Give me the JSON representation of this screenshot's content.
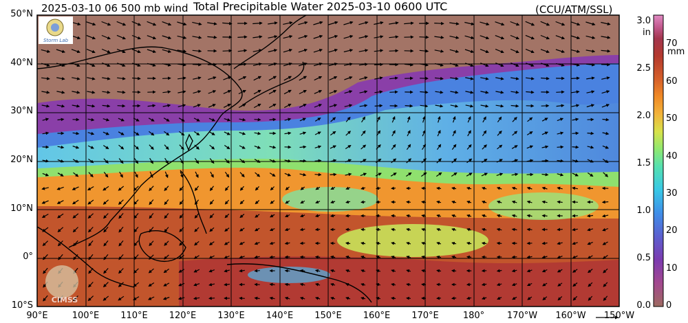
{
  "header": {
    "left": "2025-03-10 06 500 mb wind",
    "center": "Total Precipitable Water  2025-03-10 0600 UTC",
    "right": "(CCU/ATM/SSL)"
  },
  "map": {
    "projection": "equirectangular",
    "lat_range": [
      -10,
      50
    ],
    "lon_range": [
      90,
      210
    ],
    "lat_labels": [
      {
        "lat": 50,
        "text": "50°N"
      },
      {
        "lat": 40,
        "text": "40°N"
      },
      {
        "lat": 30,
        "text": "30°N"
      },
      {
        "lat": 20,
        "text": "20°N"
      },
      {
        "lat": 10,
        "text": "10°N"
      },
      {
        "lat": 0,
        "text": "0°"
      },
      {
        "lat": -10,
        "text": "10°S"
      }
    ],
    "lon_labels": [
      {
        "lon": 90,
        "text": "90°E"
      },
      {
        "lon": 100,
        "text": "100°E"
      },
      {
        "lon": 110,
        "text": "110°E"
      },
      {
        "lon": 120,
        "text": "120°E"
      },
      {
        "lon": 130,
        "text": "130°E"
      },
      {
        "lon": 140,
        "text": "140°E"
      },
      {
        "lon": 150,
        "text": "150°E"
      },
      {
        "lon": 160,
        "text": "160°E"
      },
      {
        "lon": 170,
        "text": "170°E"
      },
      {
        "lon": 180,
        "text": "180°"
      },
      {
        "lon": 190,
        "text": "170°W"
      },
      {
        "lon": 200,
        "text": "160°W"
      },
      {
        "lon": 210,
        "text": "150°W"
      }
    ],
    "logos": [
      {
        "name": "storm-lab-logo",
        "text": "Storm Lab"
      },
      {
        "name": "cimss-logo",
        "text": "CIMSS"
      }
    ]
  },
  "colorbar": {
    "unit_in": "in",
    "unit_mm": "mm",
    "in_ticks": [
      {
        "value": 0.0,
        "text": "0.0"
      },
      {
        "value": 0.5,
        "text": "0.5"
      },
      {
        "value": 1.0,
        "text": "1.0"
      },
      {
        "value": 1.5,
        "text": "1.5"
      },
      {
        "value": 2.0,
        "text": "2.0"
      },
      {
        "value": 2.5,
        "text": "2.5"
      },
      {
        "value": 3.0,
        "text": "3.0"
      }
    ],
    "mm_ticks": [
      {
        "value": 0,
        "text": "0"
      },
      {
        "value": 10,
        "text": "10"
      },
      {
        "value": 20,
        "text": "20"
      },
      {
        "value": 30,
        "text": "30"
      },
      {
        "value": 40,
        "text": "40"
      },
      {
        "value": 50,
        "text": "50"
      },
      {
        "value": 60,
        "text": "60"
      },
      {
        "value": 70,
        "text": "70"
      }
    ],
    "range_mm": [
      0,
      78
    ],
    "colors": [
      "#9e6a60",
      "#a3488f",
      "#7c3bb0",
      "#5c5fcf",
      "#3f8ee8",
      "#38c8e6",
      "#55e0b0",
      "#8fe870",
      "#d8e24a",
      "#f2b33a",
      "#f08a26",
      "#d6602a",
      "#b4392e",
      "#a3364e",
      "#c35a8f",
      "#e08ac2"
    ]
  }
}
